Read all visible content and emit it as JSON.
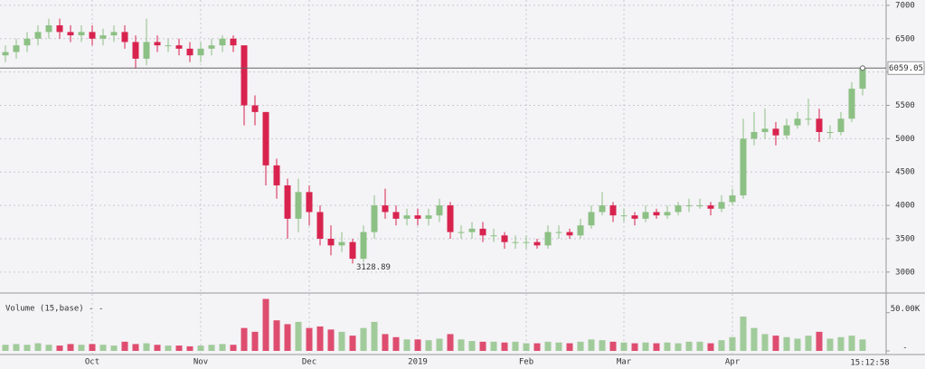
{
  "chart_data": {
    "type": "candlestick",
    "categories": [
      null,
      null,
      null,
      null,
      null,
      null,
      null,
      null,
      "Oct",
      null,
      null,
      null,
      null,
      null,
      null,
      null,
      null,
      null,
      "Nov",
      null,
      null,
      null,
      null,
      null,
      null,
      null,
      null,
      null,
      "Dec",
      null,
      null,
      null,
      null,
      null,
      null,
      null,
      null,
      null,
      "2019",
      null,
      null,
      null,
      null,
      null,
      null,
      null,
      null,
      null,
      "Feb",
      null,
      null,
      null,
      null,
      null,
      null,
      null,
      null,
      "Mar",
      null,
      null,
      null,
      null,
      null,
      null,
      null,
      null,
      null,
      "Apr",
      null,
      null,
      null,
      null,
      null,
      null,
      null,
      null,
      null,
      null,
      null,
      null
    ],
    "open": [
      6250,
      6300,
      6400,
      6500,
      6600,
      6700,
      6600,
      6550,
      6600,
      6500,
      6550,
      6600,
      6450,
      6200,
      6450,
      6400,
      6400,
      6350,
      6250,
      6350,
      6400,
      6500,
      6400,
      5500,
      5400,
      4600,
      4300,
      3800,
      4200,
      3900,
      3500,
      3400,
      3450,
      3200,
      3600,
      4000,
      3900,
      3800,
      3850,
      3800,
      3850,
      4000,
      3600,
      3600,
      3650,
      3550,
      3550,
      3450,
      3450,
      3450,
      3400,
      3600,
      3600,
      3550,
      3700,
      3900,
      4000,
      3850,
      3850,
      3800,
      3900,
      3850,
      3900,
      4000,
      4000,
      4000,
      3950,
      4050,
      4150,
      5000,
      5100,
      5150,
      5050,
      5200,
      5300,
      5300,
      5100,
      5100,
      5300,
      5750
    ],
    "high": [
      6400,
      6500,
      6600,
      6700,
      6800,
      6800,
      6700,
      6700,
      6700,
      6650,
      6700,
      6700,
      6550,
      6800,
      6550,
      6500,
      6500,
      6450,
      6450,
      6500,
      6550,
      6550,
      6400,
      5650,
      5400,
      4700,
      4400,
      4400,
      4300,
      4000,
      3700,
      3600,
      3500,
      3700,
      4150,
      4250,
      4000,
      3950,
      3950,
      3950,
      4100,
      4050,
      3700,
      3750,
      3750,
      3650,
      3600,
      3550,
      3550,
      3500,
      3700,
      3700,
      3650,
      3800,
      4000,
      4200,
      4050,
      3950,
      3900,
      4000,
      3950,
      4000,
      4050,
      4100,
      4100,
      4050,
      4150,
      4250,
      5300,
      5400,
      5450,
      5250,
      5300,
      5400,
      5600,
      5450,
      5200,
      5400,
      5850,
      6100
    ],
    "low": [
      6150,
      6200,
      6300,
      6400,
      6500,
      6500,
      6450,
      6450,
      6400,
      6400,
      6450,
      6350,
      6050,
      6100,
      6300,
      6300,
      6250,
      6150,
      6150,
      6250,
      6300,
      6300,
      5200,
      5200,
      4300,
      4100,
      3500,
      3600,
      3700,
      3400,
      3250,
      3300,
      3128.89,
      3150,
      3500,
      3800,
      3700,
      3700,
      3700,
      3700,
      3750,
      3500,
      3500,
      3500,
      3450,
      3450,
      3350,
      3350,
      3350,
      3350,
      3350,
      3500,
      3500,
      3500,
      3650,
      3850,
      3750,
      3750,
      3700,
      3750,
      3800,
      3800,
      3850,
      3900,
      3950,
      3850,
      3900,
      4000,
      4100,
      4900,
      5000,
      4900,
      5000,
      5150,
      5200,
      4950,
      5000,
      5050,
      5250,
      5650
    ],
    "close": [
      6300,
      6400,
      6500,
      6600,
      6700,
      6600,
      6550,
      6600,
      6500,
      6550,
      6600,
      6450,
      6200,
      6450,
      6400,
      6400,
      6350,
      6250,
      6350,
      6400,
      6500,
      6400,
      5500,
      5400,
      4600,
      4300,
      3800,
      4200,
      3900,
      3500,
      3400,
      3450,
      3200,
      3600,
      4000,
      3900,
      3800,
      3850,
      3800,
      3850,
      4000,
      3600,
      3600,
      3650,
      3550,
      3550,
      3450,
      3450,
      3450,
      3400,
      3600,
      3600,
      3550,
      3700,
      3900,
      4000,
      3850,
      3850,
      3800,
      3900,
      3850,
      3900,
      4000,
      4000,
      4000,
      3950,
      4050,
      4150,
      5000,
      5100,
      5150,
      5050,
      5200,
      5300,
      5300,
      5100,
      5100,
      5300,
      5750,
      6059.05
    ],
    "up_color": "#8cc084",
    "down_color": "#d8234e",
    "ylim": [
      2740,
      7080
    ],
    "yticks": [
      3000,
      3500,
      4000,
      4500,
      5000,
      5500,
      6000,
      6500,
      7000
    ],
    "last_price": 6059.05,
    "low_annotation": 3128.89,
    "time_label": "15:12:58",
    "volume": {
      "label": "Volume (15,base) - -",
      "values": [
        8000,
        9000,
        8000,
        10000,
        8000,
        7000,
        9000,
        8000,
        9000,
        8000,
        7000,
        12000,
        9000,
        10000,
        8000,
        7000,
        7000,
        6000,
        7000,
        8000,
        9000,
        8000,
        30000,
        25000,
        68000,
        40000,
        35000,
        38000,
        30000,
        32000,
        28000,
        25000,
        20000,
        30000,
        38000,
        22000,
        18000,
        15000,
        15000,
        14000,
        16000,
        22000,
        15000,
        13000,
        12000,
        12000,
        11000,
        12000,
        10000,
        10000,
        12000,
        11000,
        10000,
        12000,
        15000,
        14000,
        12000,
        11000,
        10000,
        11000,
        10000,
        11000,
        10000,
        12000,
        12000,
        10000,
        14000,
        18000,
        45000,
        30000,
        22000,
        20000,
        18000,
        16000,
        20000,
        25000,
        16000,
        18000,
        20000,
        15000
      ],
      "ylim": [
        0,
        71000
      ],
      "yticks": [
        {
          "value": 0,
          "label": "-"
        },
        {
          "value": 50000,
          "label": "50.00K"
        }
      ]
    },
    "grid": true
  }
}
